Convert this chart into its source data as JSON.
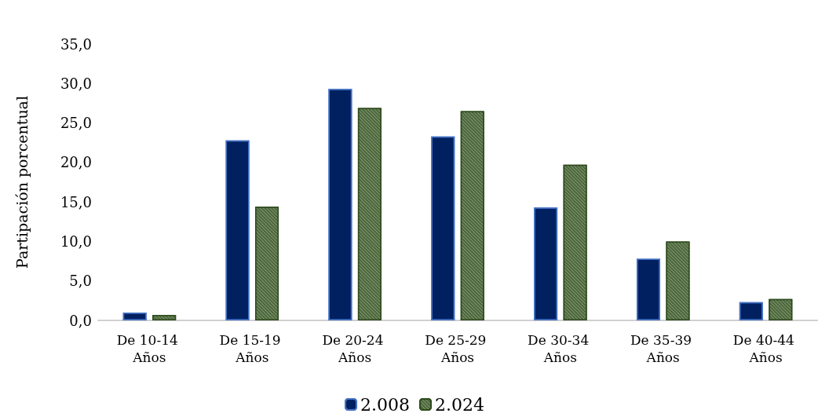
{
  "chart_data": {
    "type": "bar",
    "ylabel": "Partipación porcentual",
    "categories": [
      "De 10-14 Años",
      "De 15-19 Años",
      "De 20-24 Años",
      "De 25-29 Años",
      "De 30-34 Años",
      "De 35-39 Años",
      "De 40-44 Años"
    ],
    "series": [
      {
        "name": "2.008",
        "color": "#002060",
        "values": [
          1.0,
          22.8,
          29.3,
          23.3,
          14.3,
          7.8,
          2.3
        ]
      },
      {
        "name": "2.024",
        "color": "#375623",
        "values": [
          0.7,
          14.4,
          26.9,
          26.5,
          19.7,
          10.0,
          2.7
        ]
      }
    ],
    "ylim": [
      0,
      35
    ],
    "yticks": [
      {
        "value": 0,
        "label": "0,0"
      },
      {
        "value": 5,
        "label": "5,0"
      },
      {
        "value": 10,
        "label": "10,0"
      },
      {
        "value": 15,
        "label": "15,0"
      },
      {
        "value": 20,
        "label": "20,0"
      },
      {
        "value": 25,
        "label": "25,0"
      },
      {
        "value": 30,
        "label": "30,0"
      },
      {
        "value": 35,
        "label": "35,0"
      }
    ],
    "grid": false,
    "legend": "bottom"
  }
}
